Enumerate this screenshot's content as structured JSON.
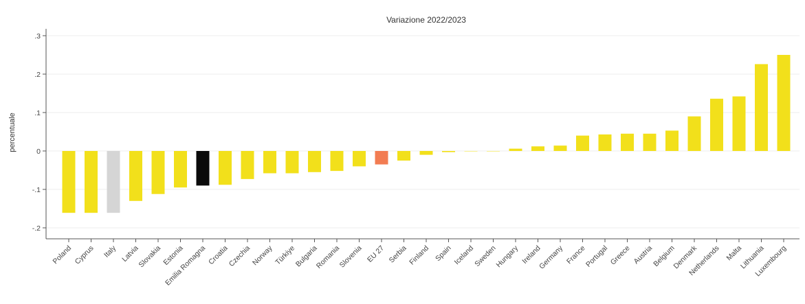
{
  "chart_data": {
    "type": "bar",
    "title": "Variazione 2022/2023",
    "xlabel": "",
    "ylabel": "percentuale",
    "ylim": [
      -0.23,
      0.32
    ],
    "yticks": [
      0.3,
      0.2,
      0.1,
      0,
      -0.1,
      -0.2
    ],
    "ytick_labels": [
      ".3",
      ".2",
      ".1",
      "0",
      "-.1",
      "-.2"
    ],
    "grid": true,
    "legend": "none",
    "categories": [
      "Poland",
      "Cyprus",
      "Italy",
      "Latvia",
      "Slovakia",
      "Estonia",
      "Emilia Romagna",
      "Croatia",
      "Czechia",
      "Norway",
      "Türkiye",
      "Bulgaria",
      "Romania",
      "Slovenia",
      "EU 27",
      "Serbia",
      "Finland",
      "Spain",
      "Iceland",
      "Sweden",
      "Hungary",
      "Ireland",
      "Germany",
      "France",
      "Portugal",
      "Greece",
      "Austria",
      "Belgium",
      "Denmark",
      "Netherlands",
      "Malta",
      "Lithuania",
      "Luxembourg"
    ],
    "values": [
      -0.161,
      -0.161,
      -0.161,
      -0.13,
      -0.112,
      -0.095,
      -0.09,
      -0.088,
      -0.073,
      -0.058,
      -0.058,
      -0.055,
      -0.052,
      -0.04,
      -0.035,
      -0.025,
      -0.01,
      -0.003,
      0.0,
      0.0,
      0.006,
      0.012,
      0.014,
      0.04,
      0.043,
      0.045,
      0.045,
      0.053,
      0.09,
      0.136,
      0.142,
      0.226,
      0.25
    ],
    "colors": {
      "default": "#f2e01b",
      "Italy": "#d5d5d5",
      "Emilia Romagna": "#0a0a0a",
      "EU 27": "#f27c52"
    }
  }
}
